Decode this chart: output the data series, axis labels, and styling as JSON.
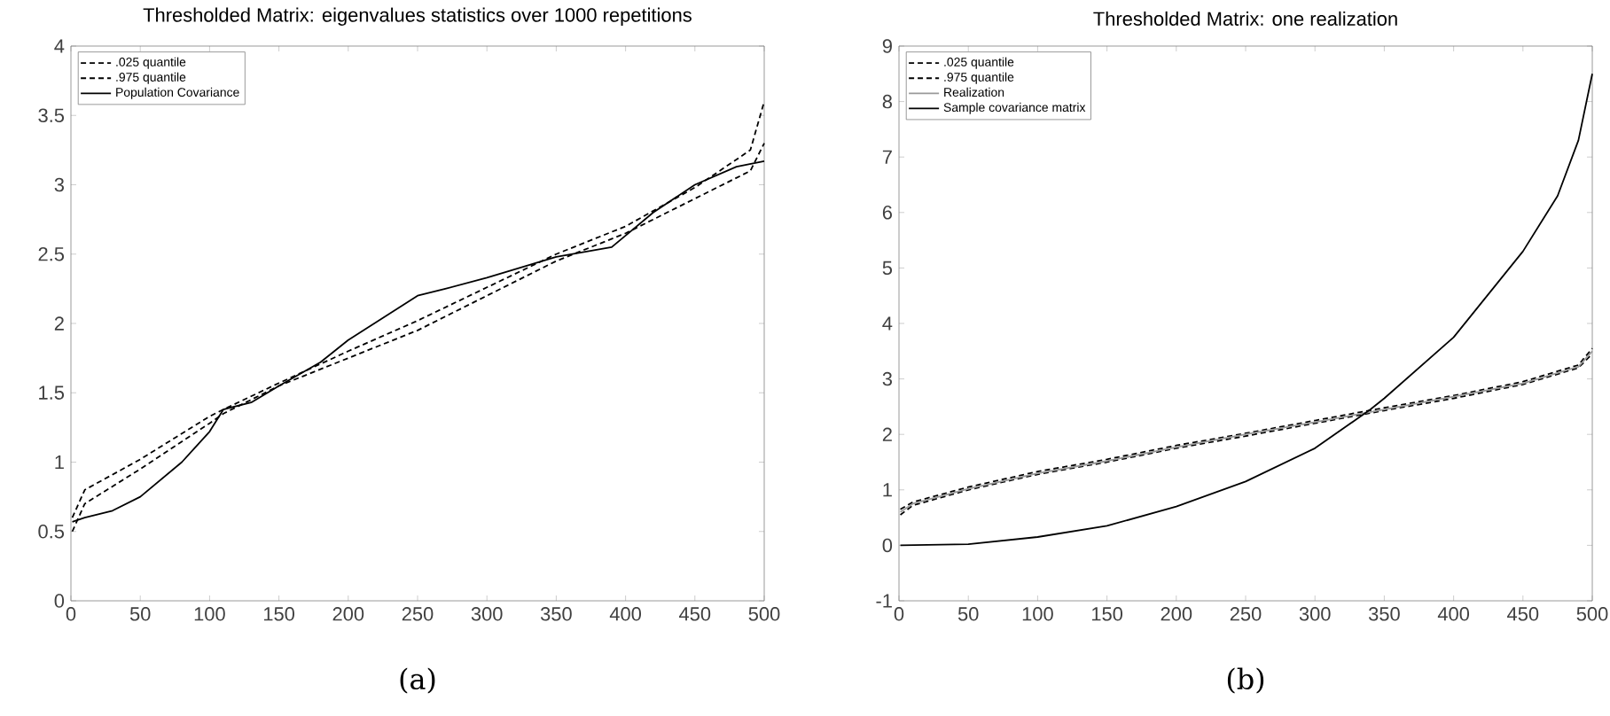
{
  "chart_data": [
    {
      "type": "line",
      "title": "Thresholded Matrix: eigenvalues statistics over 1000 repetitions",
      "annotations": [
        "(a)"
      ],
      "xlim": [
        0,
        500
      ],
      "ylim": [
        0,
        4
      ],
      "xticks": [
        0,
        50,
        100,
        150,
        200,
        250,
        300,
        350,
        400,
        450,
        500
      ],
      "yticks": [
        0,
        0.5,
        1,
        1.5,
        2,
        2.5,
        3,
        3.5,
        4
      ],
      "legend": "top left",
      "series": [
        {
          "name": ".025 quantile",
          "color": "#000000",
          "line_style": "dashed",
          "x": [
            1,
            10,
            50,
            100,
            110,
            150,
            200,
            250,
            300,
            350,
            400,
            450,
            490,
            500
          ],
          "values": [
            0.5,
            0.7,
            0.95,
            1.28,
            1.35,
            1.55,
            1.75,
            1.95,
            2.2,
            2.45,
            2.65,
            2.9,
            3.1,
            3.3
          ]
        },
        {
          "name": ".975 quantile",
          "color": "#000000",
          "line_style": "dashed",
          "x": [
            1,
            10,
            50,
            100,
            110,
            150,
            200,
            250,
            300,
            350,
            400,
            450,
            490,
            500
          ],
          "values": [
            0.6,
            0.8,
            1.02,
            1.33,
            1.38,
            1.57,
            1.8,
            2.02,
            2.26,
            2.5,
            2.7,
            2.98,
            3.25,
            3.6
          ]
        },
        {
          "name": "Population Covariance",
          "color": "#000000",
          "line_style": "solid",
          "x": [
            1,
            10,
            30,
            50,
            80,
            100,
            110,
            130,
            150,
            180,
            200,
            250,
            270,
            300,
            350,
            390,
            420,
            450,
            480,
            500
          ],
          "values": [
            0.57,
            0.6,
            0.65,
            0.75,
            1.0,
            1.22,
            1.38,
            1.43,
            1.55,
            1.72,
            1.88,
            2.2,
            2.25,
            2.33,
            2.48,
            2.55,
            2.8,
            3.0,
            3.13,
            3.17
          ]
        }
      ]
    },
    {
      "type": "line",
      "title": "Thresholded Matrix: one realization",
      "annotations": [
        "(b)"
      ],
      "xlim": [
        0,
        500
      ],
      "ylim": [
        -1,
        9
      ],
      "xticks": [
        0,
        50,
        100,
        150,
        200,
        250,
        300,
        350,
        400,
        450,
        500
      ],
      "yticks": [
        -1,
        0,
        1,
        2,
        3,
        4,
        5,
        6,
        7,
        8,
        9
      ],
      "legend": "top left",
      "series": [
        {
          "name": ".025 quantile",
          "color": "#000000",
          "line_style": "dashed",
          "x": [
            1,
            10,
            50,
            100,
            150,
            200,
            250,
            300,
            350,
            400,
            450,
            490,
            500
          ],
          "values": [
            0.55,
            0.72,
            1.0,
            1.28,
            1.5,
            1.75,
            1.97,
            2.2,
            2.43,
            2.65,
            2.9,
            3.2,
            3.45
          ]
        },
        {
          "name": ".975 quantile",
          "color": "#000000",
          "line_style": "dashed",
          "x": [
            1,
            10,
            50,
            100,
            150,
            200,
            250,
            300,
            350,
            400,
            450,
            490,
            500
          ],
          "values": [
            0.65,
            0.78,
            1.05,
            1.33,
            1.55,
            1.8,
            2.02,
            2.25,
            2.48,
            2.7,
            2.95,
            3.25,
            3.55
          ]
        },
        {
          "name": "Realization",
          "color": "#999999",
          "line_style": "solid",
          "x": [
            1,
            10,
            50,
            100,
            150,
            200,
            250,
            300,
            350,
            400,
            450,
            490,
            500
          ],
          "values": [
            0.6,
            0.75,
            1.02,
            1.3,
            1.52,
            1.77,
            2.0,
            2.22,
            2.45,
            2.68,
            2.92,
            3.22,
            3.5
          ]
        },
        {
          "name": "Sample covariance matrix",
          "color": "#000000",
          "line_style": "solid",
          "x": [
            1,
            50,
            100,
            150,
            200,
            250,
            300,
            340,
            350,
            400,
            450,
            475,
            490,
            500
          ],
          "values": [
            0,
            0.02,
            0.15,
            0.35,
            0.7,
            1.15,
            1.75,
            2.45,
            2.65,
            3.75,
            5.3,
            6.3,
            7.3,
            8.5
          ]
        }
      ]
    }
  ]
}
